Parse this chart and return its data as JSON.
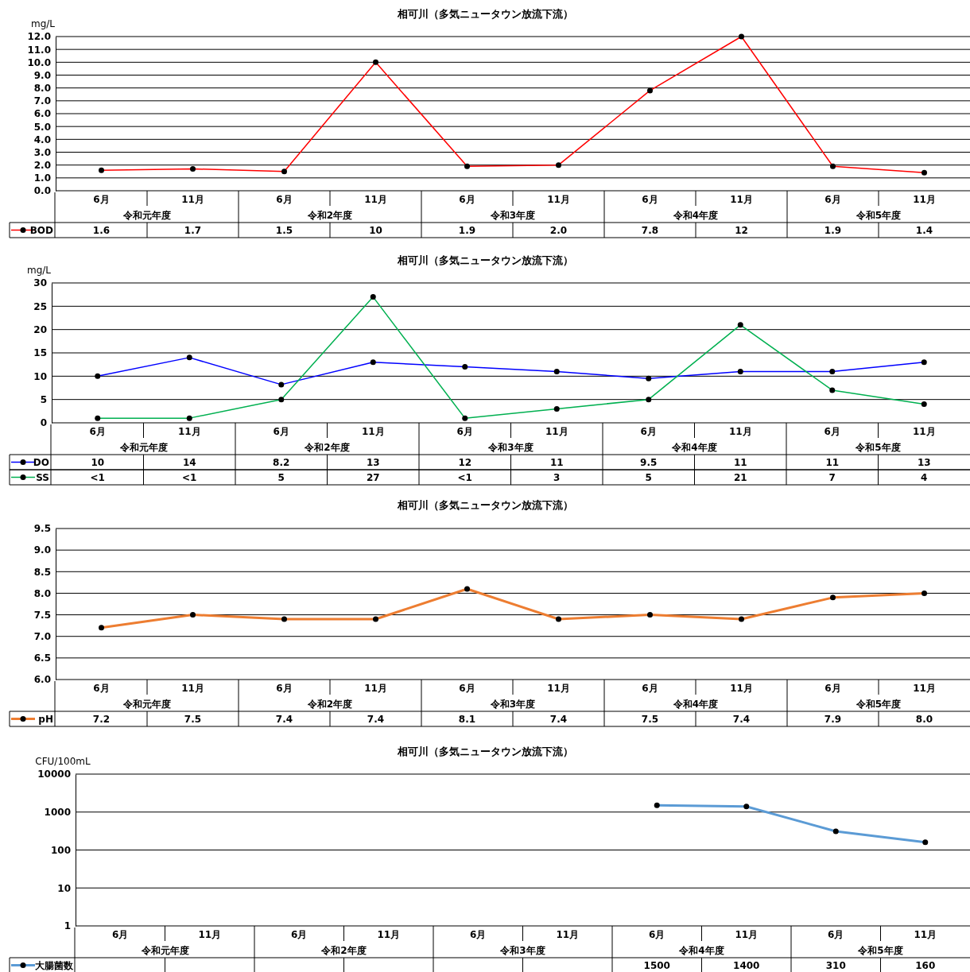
{
  "chart_data": [
    {
      "type": "line",
      "title": "相可川（多気ニュータウン放流下流）",
      "ylabel": "mg/L",
      "categories": [
        "6月",
        "11月",
        "6月",
        "11月",
        "6月",
        "11月",
        "6月",
        "11月",
        "6月",
        "11月"
      ],
      "annotations": [
        "令和元年度",
        "令和2年度",
        "令和3年度",
        "令和4年度",
        "令和5年度"
      ],
      "ylim": [
        0,
        12
      ],
      "yticks": [
        {
          "value": 0,
          "label": "0.0"
        },
        {
          "value": 1,
          "label": "1.0"
        },
        {
          "value": 2,
          "label": "2.0"
        },
        {
          "value": 3,
          "label": "3.0"
        },
        {
          "value": 4,
          "label": "4.0"
        },
        {
          "value": 5,
          "label": "5.0"
        },
        {
          "value": 6,
          "label": "6.0"
        },
        {
          "value": 7,
          "label": "7.0"
        },
        {
          "value": 8,
          "label": "8.0"
        },
        {
          "value": 9,
          "label": "9.0"
        },
        {
          "value": 10,
          "label": "10.0"
        },
        {
          "value": 11,
          "label": "11.0"
        },
        {
          "value": 12,
          "label": "12.0"
        }
      ],
      "grid": "y",
      "legend": "bottom",
      "marker": "circle",
      "series": [
        {
          "name": "BOD",
          "color": "#ff0000",
          "values": [
            1.6,
            1.7,
            1.5,
            10,
            1.9,
            2.0,
            7.8,
            12,
            1.9,
            1.4
          ],
          "value_labels": [
            "1.6",
            "1.7",
            "1.5",
            "10",
            "1.9",
            "2.0",
            "7.8",
            "12",
            "1.9",
            "1.4"
          ]
        }
      ]
    },
    {
      "type": "line",
      "title": "相可川（多気ニュータウン放流下流）",
      "ylabel": "mg/L",
      "categories": [
        "6月",
        "11月",
        "6月",
        "11月",
        "6月",
        "11月",
        "6月",
        "11月",
        "6月",
        "11月"
      ],
      "annotations": [
        "令和元年度",
        "令和2年度",
        "令和3年度",
        "令和4年度",
        "令和5年度"
      ],
      "ylim": [
        0,
        30
      ],
      "yticks": [
        0,
        5,
        10,
        15,
        20,
        25,
        30
      ],
      "grid": "y",
      "legend": "bottom",
      "marker": "circle",
      "series": [
        {
          "name": "DO",
          "color": "#0000ff",
          "values": [
            10,
            14,
            8.2,
            13,
            12,
            11,
            9.5,
            11,
            11,
            13
          ],
          "value_labels": [
            "10",
            "14",
            "8.2",
            "13",
            "12",
            "11",
            "9.5",
            "11",
            "11",
            "13"
          ]
        },
        {
          "name": "SS",
          "color": "#00b050",
          "values": [
            1,
            1,
            5,
            27,
            1,
            3,
            5,
            21,
            7,
            4
          ],
          "value_labels": [
            "<1",
            "<1",
            "5",
            "27",
            "<1",
            "3",
            "5",
            "21",
            "7",
            "4"
          ]
        }
      ]
    },
    {
      "type": "line",
      "title": "相可川（多気ニュータウン放流下流）",
      "categories": [
        "6月",
        "11月",
        "6月",
        "11月",
        "6月",
        "11月",
        "6月",
        "11月",
        "6月",
        "11月"
      ],
      "annotations": [
        "令和元年度",
        "令和2年度",
        "令和3年度",
        "令和4年度",
        "令和5年度"
      ],
      "ylim": [
        6,
        9.5
      ],
      "yticks": [
        {
          "value": 6,
          "label": "6.0"
        },
        {
          "value": 6.5,
          "label": "6.5"
        },
        {
          "value": 7,
          "label": "7.0"
        },
        {
          "value": 7.5,
          "label": "7.5"
        },
        {
          "value": 8,
          "label": "8.0"
        },
        {
          "value": 8.5,
          "label": "8.5"
        },
        {
          "value": 9,
          "label": "9.0"
        },
        {
          "value": 9.5,
          "label": "9.5"
        }
      ],
      "grid": "y",
      "legend": "bottom",
      "marker": "circle",
      "series": [
        {
          "name": "pH",
          "color": "#ed7d31",
          "values": [
            7.2,
            7.5,
            7.4,
            7.4,
            8.1,
            7.4,
            7.5,
            7.4,
            7.9,
            8.0
          ],
          "value_labels": [
            "7.2",
            "7.5",
            "7.4",
            "7.4",
            "8.1",
            "7.4",
            "7.5",
            "7.4",
            "7.9",
            "8.0"
          ]
        }
      ]
    },
    {
      "type": "line",
      "title": "相可川（多気ニュータウン放流下流）",
      "ylabel": "CFU/100mL",
      "categories": [
        "6月",
        "11月",
        "6月",
        "11月",
        "6月",
        "11月",
        "6月",
        "11月",
        "6月",
        "11月"
      ],
      "annotations": [
        "令和元年度",
        "令和2年度",
        "令和3年度",
        "令和4年度",
        "令和5年度"
      ],
      "log": true,
      "ylim": [
        1,
        10000
      ],
      "yticks": [
        1,
        10,
        100,
        1000,
        10000
      ],
      "grid": "y",
      "legend": "bottom",
      "marker": "circle",
      "series": [
        {
          "name": "大腸菌数",
          "color": "#5b9bd5",
          "values": [
            null,
            null,
            null,
            null,
            null,
            null,
            1500,
            1400,
            310,
            160
          ],
          "value_labels": [
            null,
            null,
            null,
            null,
            null,
            null,
            "1500",
            "1400",
            "310",
            "160"
          ]
        }
      ]
    }
  ]
}
